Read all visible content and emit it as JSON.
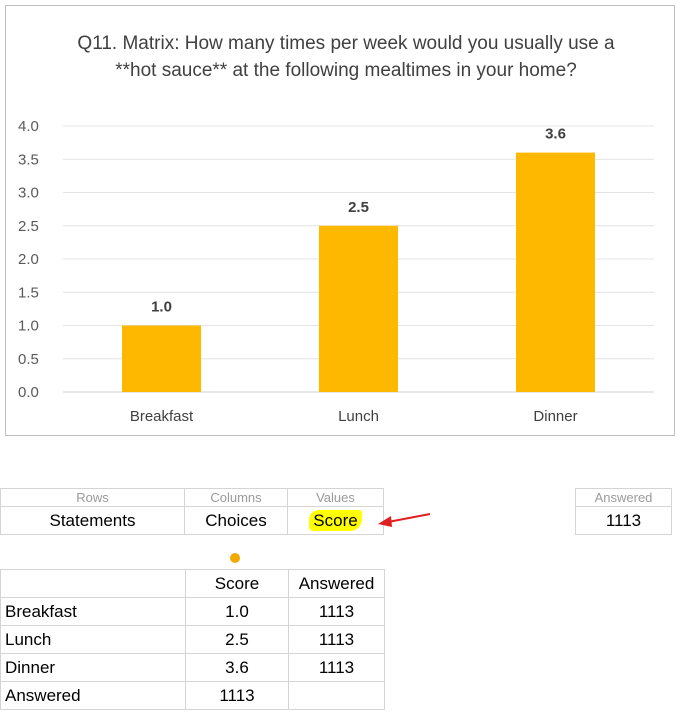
{
  "chart_data": {
    "type": "bar",
    "title": "Q11. Matrix: How many times per week would you usually use a **hot sauce** at the following mealtimes in your home?",
    "categories": [
      "Breakfast",
      "Lunch",
      "Dinner"
    ],
    "values": [
      1.0,
      2.5,
      3.6
    ],
    "data_labels": [
      "1.0",
      "2.5",
      "3.6"
    ],
    "ylim": [
      0,
      4.0
    ],
    "y_ticks": [
      "0.0",
      "0.5",
      "1.0",
      "1.5",
      "2.0",
      "2.5",
      "3.0",
      "3.5",
      "4.0"
    ],
    "grid": true,
    "bar_color": "#ffb800",
    "xlabel": "",
    "ylabel": ""
  },
  "pivot_layout": {
    "rows_header": "Rows",
    "columns_header": "Columns",
    "values_header": "Values",
    "rows_value": "Statements",
    "columns_value": "Choices",
    "values_value": "Score",
    "answered_header": "Answered",
    "answered_value": "1113"
  },
  "table": {
    "header": [
      "",
      "Score",
      "Answered"
    ],
    "rows": [
      [
        "Breakfast",
        "1.0",
        "1113"
      ],
      [
        "Lunch",
        "2.5",
        "1113"
      ],
      [
        "Dinner",
        "3.6",
        "1113"
      ],
      [
        "Answered",
        "1113",
        ""
      ]
    ]
  },
  "colors": {
    "highlight": "#ffff00",
    "arrow": "#e02020",
    "dot": "#f2a900"
  }
}
